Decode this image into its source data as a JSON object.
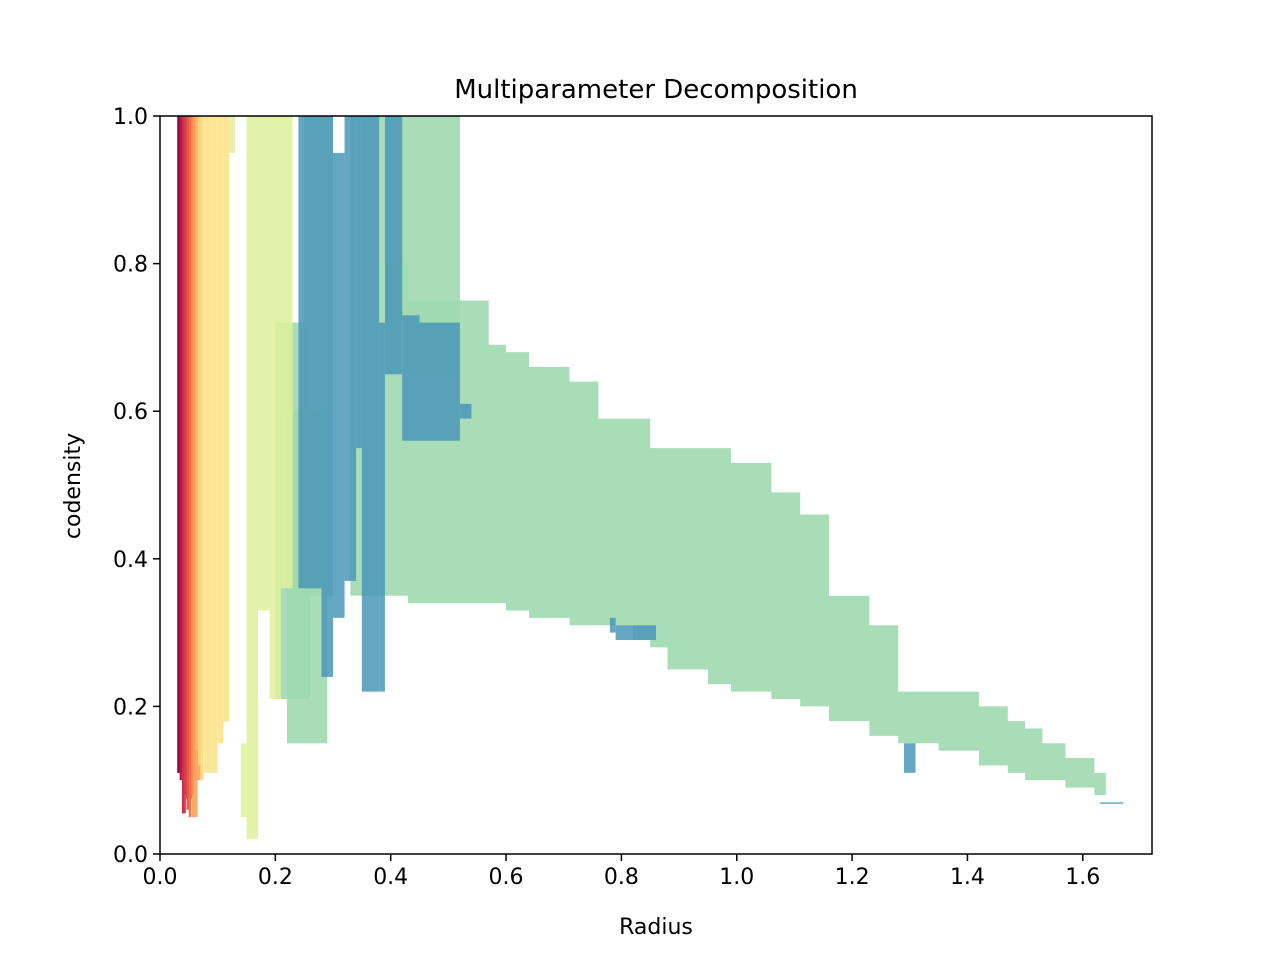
{
  "chart_data": {
    "type": "area",
    "title": "Multiparameter Decomposition",
    "xlabel": "Radius",
    "ylabel": "codensity",
    "xlim": [
      0.0,
      1.72
    ],
    "ylim": [
      0.0,
      1.0
    ],
    "xticks": [
      "0.0",
      "0.2",
      "0.4",
      "0.6",
      "0.8",
      "1.0",
      "1.2",
      "1.4",
      "1.6"
    ],
    "yticks": [
      "0.0",
      "0.2",
      "0.4",
      "0.6",
      "0.8",
      "1.0"
    ],
    "grid": false,
    "legend": "none",
    "series": [
      {
        "color": "#9fd9b0",
        "opacity": 0.9,
        "profile": [
          [
            0.39,
            0.8,
            0.35
          ],
          [
            0.43,
            0.75,
            0.34
          ],
          [
            0.52,
            0.75,
            0.34
          ],
          [
            0.57,
            0.69,
            0.34
          ],
          [
            0.6,
            0.68,
            0.33
          ],
          [
            0.64,
            0.66,
            0.32
          ],
          [
            0.67,
            0.66,
            0.32
          ],
          [
            0.71,
            0.64,
            0.31
          ],
          [
            0.76,
            0.59,
            0.31
          ],
          [
            0.82,
            0.59,
            0.29
          ],
          [
            0.85,
            0.55,
            0.28
          ],
          [
            0.88,
            0.55,
            0.25
          ],
          [
            0.95,
            0.55,
            0.23
          ],
          [
            0.99,
            0.53,
            0.22
          ],
          [
            1.06,
            0.49,
            0.21
          ],
          [
            1.11,
            0.46,
            0.2
          ],
          [
            1.16,
            0.35,
            0.18
          ],
          [
            1.23,
            0.31,
            0.16
          ],
          [
            1.28,
            0.22,
            0.15
          ],
          [
            1.35,
            0.22,
            0.14
          ],
          [
            1.42,
            0.2,
            0.12
          ],
          [
            1.47,
            0.18,
            0.11
          ],
          [
            1.5,
            0.17,
            0.1
          ],
          [
            1.53,
            0.15,
            0.1
          ],
          [
            1.57,
            0.13,
            0.09
          ],
          [
            1.62,
            0.11,
            0.08
          ],
          [
            1.64,
            0.11,
            0.08
          ]
        ]
      },
      {
        "color": "#9fd9b0",
        "opacity": 0.9,
        "bars": [
          [
            0.39,
            0.52,
            0.65,
            1.0
          ],
          [
            0.33,
            0.39,
            0.35,
            1.0
          ],
          [
            0.22,
            0.29,
            0.15,
            0.6
          ],
          [
            0.2,
            0.26,
            0.21,
            0.72
          ],
          [
            0.25,
            0.3,
            0.35,
            1.0
          ]
        ]
      },
      {
        "color": "#4a96b8",
        "opacity": 0.85,
        "bars": [
          [
            0.24,
            0.28,
            0.36,
            1.0
          ],
          [
            0.28,
            0.3,
            0.24,
            1.0
          ],
          [
            0.3,
            0.32,
            0.32,
            0.95
          ],
          [
            0.32,
            0.34,
            0.37,
            1.0
          ],
          [
            0.34,
            0.35,
            0.55,
            1.0
          ],
          [
            0.35,
            0.38,
            0.22,
            1.0
          ],
          [
            0.38,
            0.39,
            0.22,
            0.72
          ],
          [
            0.39,
            0.42,
            0.65,
            1.0
          ],
          [
            0.42,
            0.45,
            0.56,
            0.73
          ],
          [
            0.45,
            0.52,
            0.56,
            0.72
          ],
          [
            0.52,
            0.54,
            0.59,
            0.61
          ],
          [
            0.78,
            0.79,
            0.3,
            0.32
          ],
          [
            0.79,
            0.86,
            0.29,
            0.31
          ],
          [
            1.29,
            1.31,
            0.11,
            0.15
          ],
          [
            1.63,
            1.67,
            0.068,
            0.07
          ]
        ]
      },
      {
        "color": "#dff09a",
        "opacity": 0.85,
        "bars": [
          [
            0.15,
            0.17,
            0.02,
            1.0
          ],
          [
            0.17,
            0.19,
            0.33,
            1.0
          ],
          [
            0.19,
            0.21,
            0.21,
            1.0
          ],
          [
            0.21,
            0.23,
            0.36,
            1.0
          ],
          [
            0.12,
            0.13,
            0.95,
            1.0
          ],
          [
            0.14,
            0.15,
            0.05,
            0.15
          ]
        ]
      },
      {
        "color": "#fbe38c",
        "opacity": 0.9,
        "bars": [
          [
            0.07,
            0.09,
            0.11,
            1.0
          ],
          [
            0.09,
            0.1,
            0.11,
            1.0
          ],
          [
            0.1,
            0.11,
            0.15,
            1.0
          ],
          [
            0.11,
            0.12,
            0.18,
            1.0
          ]
        ]
      },
      {
        "color": "#f9a256",
        "opacity": 0.9,
        "bars": [
          [
            0.055,
            0.065,
            0.05,
            1.0
          ],
          [
            0.065,
            0.075,
            0.1,
            1.0
          ]
        ]
      },
      {
        "color": "#d53e4f",
        "opacity": 0.95,
        "bars": [
          [
            0.03,
            0.04,
            0.11,
            1.0
          ],
          [
            0.04,
            0.045,
            0.055,
            1.0
          ],
          [
            0.045,
            0.055,
            0.075,
            1.0
          ]
        ]
      }
    ]
  }
}
